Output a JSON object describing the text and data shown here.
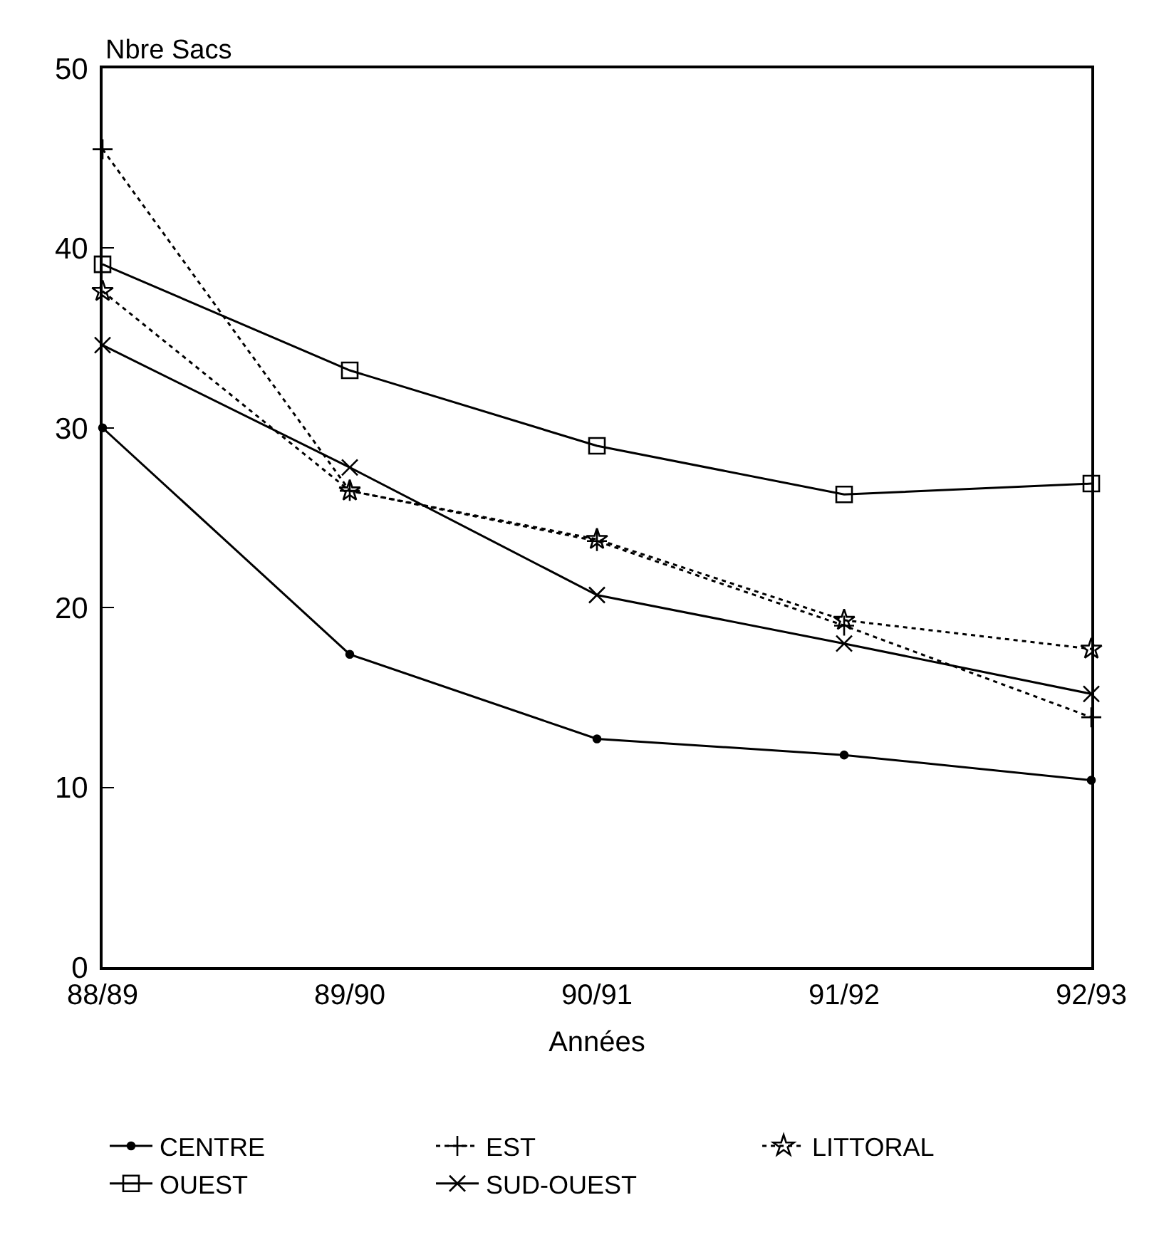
{
  "chart_data": {
    "type": "line",
    "ylabel": "Nbre Sacs",
    "xlabel": "Années",
    "categories": [
      "88/89",
      "89/90",
      "90/91",
      "91/92",
      "92/93"
    ],
    "ylim": [
      0,
      50
    ],
    "yticks": [
      0,
      10,
      20,
      30,
      40,
      50
    ],
    "legend": "bottom",
    "series": [
      {
        "name": "CENTRE",
        "color": "#000000",
        "marker": "circle",
        "line_style": "solid",
        "values": [
          30.0,
          17.4,
          12.7,
          11.8,
          10.4
        ]
      },
      {
        "name": "EST",
        "color": "#000000",
        "marker": "cross",
        "line_style": "dotted",
        "values": [
          45.5,
          26.5,
          23.7,
          19.0,
          13.9
        ]
      },
      {
        "name": "LITTORAL",
        "color": "#000000",
        "marker": "star",
        "line_style": "dotted",
        "values": [
          37.6,
          26.5,
          23.8,
          19.3,
          17.7
        ]
      },
      {
        "name": "OUEST",
        "color": "#000000",
        "marker": "square",
        "line_style": "solid",
        "values": [
          39.1,
          33.2,
          29.0,
          26.3,
          26.9
        ]
      },
      {
        "name": "SUD-OUEST",
        "color": "#000000",
        "marker": "x",
        "line_style": "solid",
        "values": [
          34.6,
          27.8,
          20.7,
          18.0,
          15.2
        ]
      }
    ]
  }
}
